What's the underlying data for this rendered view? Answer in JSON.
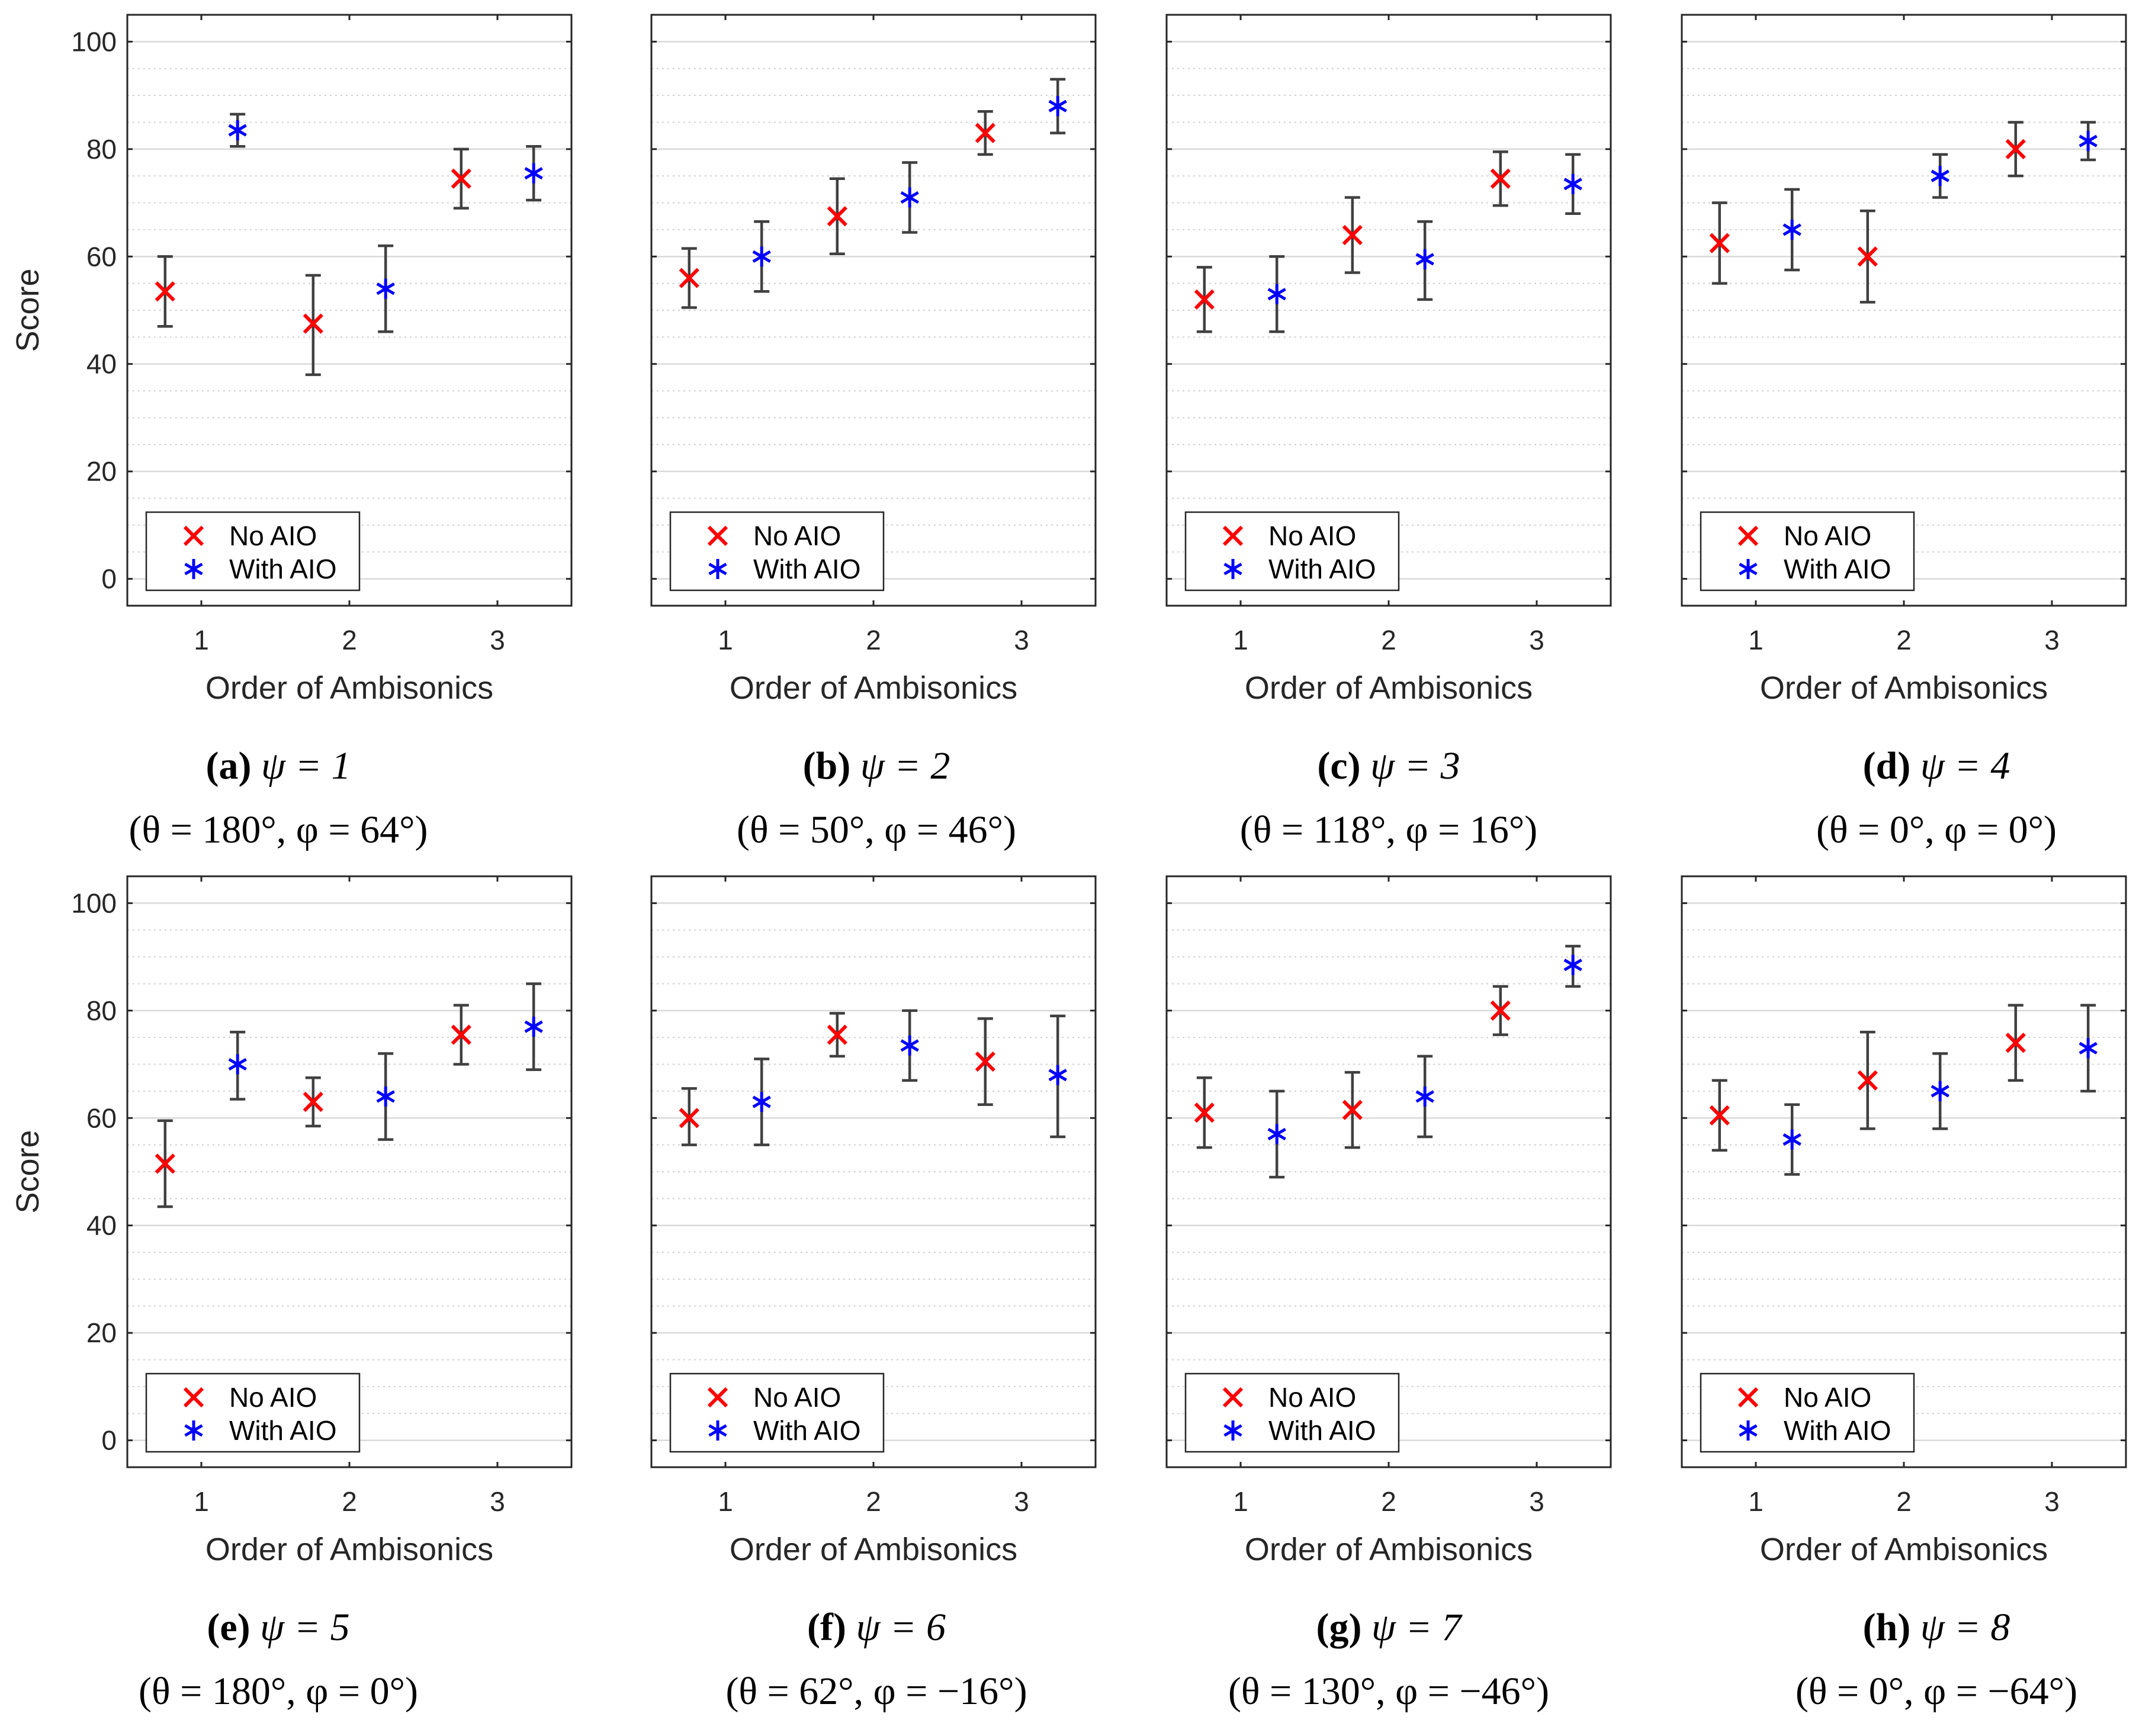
{
  "figure": {
    "colors": {
      "no_aio": "#ff0000",
      "with_aio": "#0000ff",
      "errorbar": "#404040",
      "grid": "#d9d9d9"
    }
  },
  "chart_data": [
    {
      "type": "scatter",
      "id": "a",
      "letter": "a",
      "caption": {
        "label": "(a)",
        "psi": "ψ = 1",
        "angles": "(θ = 180°, φ = 64°)"
      },
      "xlabel": "Order of Ambisonics",
      "ylabel": "Score",
      "categories": [
        "1",
        "2",
        "3"
      ],
      "ylim": [
        -5,
        105
      ],
      "yticks": [
        0,
        20,
        40,
        60,
        80,
        100
      ],
      "legend": {
        "position": "bottom-left",
        "entries": [
          "No AIO",
          "With AIO"
        ]
      },
      "series": [
        {
          "name": "No AIO",
          "marker": "x",
          "values": [
            53.5,
            47.5,
            74.5
          ],
          "lower": [
            47,
            38,
            69
          ],
          "upper": [
            60,
            56.5,
            80
          ]
        },
        {
          "name": "With AIO",
          "marker": "asterisk",
          "values": [
            83.5,
            54,
            75.5
          ],
          "lower": [
            80.5,
            46,
            70.5
          ],
          "upper": [
            86.5,
            62,
            80.5
          ]
        }
      ]
    },
    {
      "type": "scatter",
      "id": "b",
      "letter": "b",
      "caption": {
        "label": "(b)",
        "psi": "ψ = 2",
        "angles": "(θ = 50°, φ = 46°)"
      },
      "xlabel": "Order of Ambisonics",
      "ylabel": "",
      "categories": [
        "1",
        "2",
        "3"
      ],
      "ylim": [
        -5,
        105
      ],
      "yticks": [
        0,
        20,
        40,
        60,
        80,
        100
      ],
      "legend": {
        "position": "bottom-left",
        "entries": [
          "No AIO",
          "With AIO"
        ]
      },
      "series": [
        {
          "name": "No AIO",
          "marker": "x",
          "values": [
            56,
            67.5,
            83
          ],
          "lower": [
            50.5,
            60.5,
            79
          ],
          "upper": [
            61.5,
            74.5,
            87
          ]
        },
        {
          "name": "With AIO",
          "marker": "asterisk",
          "values": [
            60,
            71,
            88
          ],
          "lower": [
            53.5,
            64.5,
            83
          ],
          "upper": [
            66.5,
            77.5,
            93
          ]
        }
      ]
    },
    {
      "type": "scatter",
      "id": "c",
      "letter": "c",
      "caption": {
        "label": "(c)",
        "psi": "ψ = 3",
        "angles": "(θ = 118°, φ = 16°)"
      },
      "xlabel": "Order of Ambisonics",
      "ylabel": "",
      "categories": [
        "1",
        "2",
        "3"
      ],
      "ylim": [
        -5,
        105
      ],
      "yticks": [
        0,
        20,
        40,
        60,
        80,
        100
      ],
      "legend": {
        "position": "bottom-left",
        "entries": [
          "No AIO",
          "With AIO"
        ]
      },
      "series": [
        {
          "name": "No AIO",
          "marker": "x",
          "values": [
            52,
            64,
            74.5
          ],
          "lower": [
            46,
            57,
            69.5
          ],
          "upper": [
            58,
            71,
            79.5
          ]
        },
        {
          "name": "With AIO",
          "marker": "asterisk",
          "values": [
            53,
            59.5,
            73.5
          ],
          "lower": [
            46,
            52,
            68
          ],
          "upper": [
            60,
            66.5,
            79
          ]
        }
      ]
    },
    {
      "type": "scatter",
      "id": "d",
      "letter": "d",
      "caption": {
        "label": "(d)",
        "psi": "ψ = 4",
        "angles": "(θ = 0°, φ = 0°)"
      },
      "xlabel": "Order of Ambisonics",
      "ylabel": "",
      "categories": [
        "1",
        "2",
        "3"
      ],
      "ylim": [
        -5,
        105
      ],
      "yticks": [
        0,
        20,
        40,
        60,
        80,
        100
      ],
      "legend": {
        "position": "bottom-left",
        "entries": [
          "No AIO",
          "With AIO"
        ]
      },
      "series": [
        {
          "name": "No AIO",
          "marker": "x",
          "values": [
            62.5,
            60,
            80
          ],
          "lower": [
            55,
            51.5,
            75
          ],
          "upper": [
            70,
            68.5,
            85
          ]
        },
        {
          "name": "With AIO",
          "marker": "asterisk",
          "values": [
            65,
            75,
            81.5
          ],
          "lower": [
            57.5,
            71,
            78
          ],
          "upper": [
            72.5,
            79,
            85
          ]
        }
      ]
    },
    {
      "type": "scatter",
      "id": "e",
      "letter": "e",
      "caption": {
        "label": "(e)",
        "psi": "ψ = 5",
        "angles": "(θ = 180°, φ = 0°)"
      },
      "xlabel": "Order of Ambisonics",
      "ylabel": "Score",
      "categories": [
        "1",
        "2",
        "3"
      ],
      "ylim": [
        -5,
        105
      ],
      "yticks": [
        0,
        20,
        40,
        60,
        80,
        100
      ],
      "legend": {
        "position": "bottom-left",
        "entries": [
          "No AIO",
          "With AIO"
        ]
      },
      "series": [
        {
          "name": "No AIO",
          "marker": "x",
          "values": [
            51.5,
            63,
            75.5
          ],
          "lower": [
            43.5,
            58.5,
            70
          ],
          "upper": [
            59.5,
            67.5,
            81
          ]
        },
        {
          "name": "With AIO",
          "marker": "asterisk",
          "values": [
            70,
            64,
            77
          ],
          "lower": [
            63.5,
            56,
            69
          ],
          "upper": [
            76,
            72,
            85
          ]
        }
      ]
    },
    {
      "type": "scatter",
      "id": "f",
      "letter": "f",
      "caption": {
        "label": "(f)",
        "psi": "ψ = 6",
        "angles": "(θ = 62°, φ = −16°)"
      },
      "xlabel": "Order of Ambisonics",
      "ylabel": "",
      "categories": [
        "1",
        "2",
        "3"
      ],
      "ylim": [
        -5,
        105
      ],
      "yticks": [
        0,
        20,
        40,
        60,
        80,
        100
      ],
      "legend": {
        "position": "bottom-left",
        "entries": [
          "No AIO",
          "With AIO"
        ]
      },
      "series": [
        {
          "name": "No AIO",
          "marker": "x",
          "values": [
            60,
            75.5,
            70.5
          ],
          "lower": [
            55,
            71.5,
            62.5
          ],
          "upper": [
            65.5,
            79.5,
            78.5
          ]
        },
        {
          "name": "With AIO",
          "marker": "asterisk",
          "values": [
            63,
            73.5,
            68
          ],
          "lower": [
            55,
            67,
            56.5
          ],
          "upper": [
            71,
            80,
            79
          ]
        }
      ]
    },
    {
      "type": "scatter",
      "id": "g",
      "letter": "g",
      "caption": {
        "label": "(g)",
        "psi": "ψ = 7",
        "angles": "(θ = 130°, φ = −46°)"
      },
      "xlabel": "Order of Ambisonics",
      "ylabel": "",
      "categories": [
        "1",
        "2",
        "3"
      ],
      "ylim": [
        -5,
        105
      ],
      "yticks": [
        0,
        20,
        40,
        60,
        80,
        100
      ],
      "legend": {
        "position": "bottom-left",
        "entries": [
          "No AIO",
          "With AIO"
        ]
      },
      "series": [
        {
          "name": "No AIO",
          "marker": "x",
          "values": [
            61,
            61.5,
            80
          ],
          "lower": [
            54.5,
            54.5,
            75.5
          ],
          "upper": [
            67.5,
            68.5,
            84.5
          ]
        },
        {
          "name": "With AIO",
          "marker": "asterisk",
          "values": [
            57,
            64,
            88.5
          ],
          "lower": [
            49,
            56.5,
            84.5
          ],
          "upper": [
            65,
            71.5,
            92
          ]
        }
      ]
    },
    {
      "type": "scatter",
      "id": "h",
      "letter": "h",
      "caption": {
        "label": "(h)",
        "psi": "ψ = 8",
        "angles": "(θ = 0°, φ = −64°)"
      },
      "xlabel": "Order of Ambisonics",
      "ylabel": "",
      "categories": [
        "1",
        "2",
        "3"
      ],
      "ylim": [
        -5,
        105
      ],
      "yticks": [
        0,
        20,
        40,
        60,
        80,
        100
      ],
      "legend": {
        "position": "bottom-left",
        "entries": [
          "No AIO",
          "With AIO"
        ]
      },
      "series": [
        {
          "name": "No AIO",
          "marker": "x",
          "values": [
            60.5,
            67,
            74
          ],
          "lower": [
            54,
            58,
            67
          ],
          "upper": [
            67,
            76,
            81
          ]
        },
        {
          "name": "With AIO",
          "marker": "asterisk",
          "values": [
            56,
            65,
            73
          ],
          "lower": [
            49.5,
            58,
            65
          ],
          "upper": [
            62.5,
            72,
            81
          ]
        }
      ]
    }
  ]
}
